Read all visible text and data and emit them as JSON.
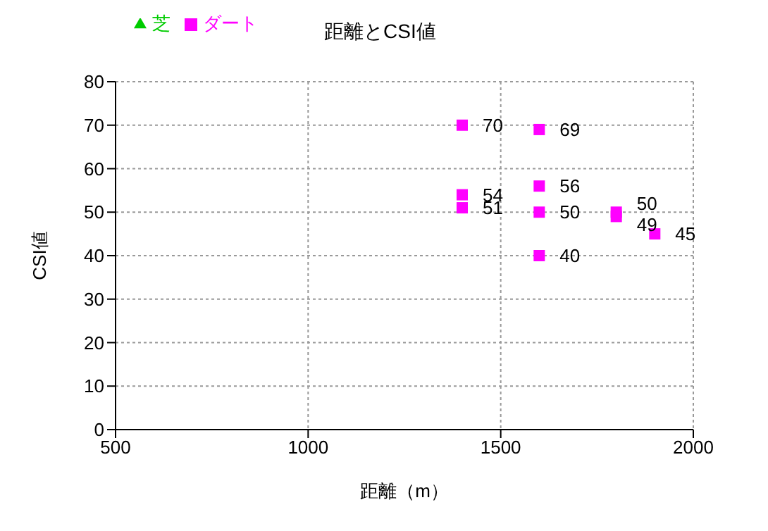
{
  "chart_data": {
    "type": "scatter",
    "title": "距離とCSI値",
    "xlabel": "距離（m）",
    "ylabel": "CSI値",
    "xlim": [
      500,
      2000
    ],
    "xticks": [
      500,
      1000,
      1500,
      2000
    ],
    "ylim": [
      0,
      80
    ],
    "yticks": [
      0,
      10,
      20,
      30,
      40,
      50,
      60,
      70,
      80
    ],
    "grid": true,
    "legend": "top left",
    "data_labels": true,
    "series": [
      {
        "name": "芝",
        "color": "#00cc00",
        "marker": "triangle"
      },
      {
        "name": "ダート",
        "color": "#ff00ff",
        "marker": "square",
        "x": [
          1400,
          1400,
          1400,
          1600,
          1600,
          1600,
          1600,
          1800,
          1800,
          1900
        ],
        "values": [
          70,
          54,
          51,
          69,
          56,
          50,
          40,
          50,
          49,
          45
        ]
      }
    ]
  }
}
